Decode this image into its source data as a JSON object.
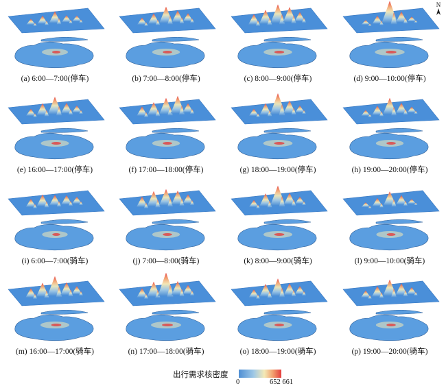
{
  "chart_data": {
    "type": "heatmap",
    "panels": [
      {
        "caption": "(a) 6:00—7:00(停车)",
        "peaks": [
          0.25,
          0.35,
          0.5,
          0.3,
          0.25
        ]
      },
      {
        "caption": "(b) 7:00—8:00(停车)",
        "peaks": [
          0.3,
          0.45,
          0.7,
          0.5,
          0.35
        ]
      },
      {
        "caption": "(c) 8:00—9:00(停车)",
        "peaks": [
          0.45,
          0.6,
          0.8,
          0.65,
          0.4
        ]
      },
      {
        "caption": "(d) 9:00—10:00(停车)",
        "peaks": [
          0.2,
          0.35,
          0.95,
          0.45,
          0.2
        ]
      },
      {
        "caption": "(e) 16:00—17:00(停车)",
        "peaks": [
          0.3,
          0.5,
          0.75,
          0.45,
          0.3
        ]
      },
      {
        "caption": "(f) 17:00—18:00(停车)",
        "peaks": [
          0.4,
          0.55,
          0.7,
          0.75,
          0.4
        ]
      },
      {
        "caption": "(g) 18:00—19:00(停车)",
        "peaks": [
          0.3,
          0.5,
          0.9,
          0.55,
          0.3
        ]
      },
      {
        "caption": "(h) 19:00—20:00(停车)",
        "peaks": [
          0.25,
          0.4,
          0.7,
          0.45,
          0.25
        ]
      },
      {
        "caption": "(i) 6:00—7:00(骑车)",
        "peaks": [
          0.35,
          0.5,
          0.45,
          0.4,
          0.3
        ]
      },
      {
        "caption": "(j) 7:00—8:00(骑车)",
        "peaks": [
          0.45,
          0.65,
          0.7,
          0.6,
          0.4
        ]
      },
      {
        "caption": "(k) 8:00—9:00(骑车)",
        "peaks": [
          0.3,
          0.55,
          0.85,
          0.5,
          0.3
        ]
      },
      {
        "caption": "(l) 9:00—10:00(骑车)",
        "peaks": [
          0.2,
          0.35,
          0.6,
          0.4,
          0.2
        ]
      },
      {
        "caption": "(m) 16:00—17:00(骑车)",
        "peaks": [
          0.4,
          0.6,
          0.85,
          0.55,
          0.35
        ]
      },
      {
        "caption": "(n) 17:00—18:00(骑车)",
        "peaks": [
          0.4,
          0.65,
          1.0,
          0.6,
          0.4
        ]
      },
      {
        "caption": "(o) 18:00—19:00(骑车)",
        "peaks": [
          0.35,
          0.55,
          0.75,
          0.5,
          0.35
        ]
      },
      {
        "caption": "(p) 19:00—20:00(骑车)",
        "peaks": [
          0.3,
          0.45,
          0.7,
          0.5,
          0.3
        ]
      }
    ],
    "colorbar": {
      "label": "出行需求核密度",
      "min": "0",
      "max": "652 661",
      "colors": [
        "#4f8fd4",
        "#9fc8e6",
        "#f3e9b6",
        "#f2a06e",
        "#e43d3d"
      ]
    },
    "compass": "N"
  }
}
